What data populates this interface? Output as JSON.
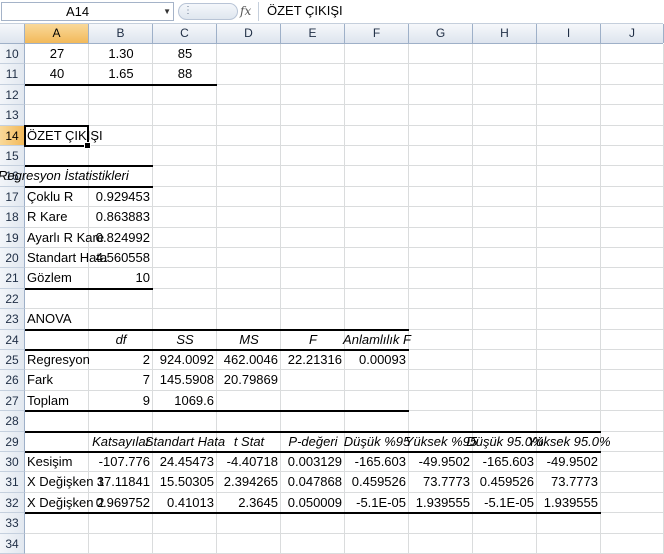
{
  "formula_bar": {
    "name_box": "A14",
    "fx_label": "fx",
    "formula": "ÖZET ÇIKIŞI"
  },
  "columns": [
    "A",
    "B",
    "C",
    "D",
    "E",
    "F",
    "G",
    "H",
    "I",
    "J"
  ],
  "selected_column": "A",
  "rows": [
    "10",
    "11",
    "12",
    "13",
    "14",
    "15",
    "16",
    "17",
    "18",
    "19",
    "20",
    "21",
    "22",
    "23",
    "24",
    "25",
    "26",
    "27",
    "28",
    "29",
    "30",
    "31",
    "32",
    "33",
    "34"
  ],
  "selected_row": "14",
  "cells": {
    "r10": {
      "A": "27",
      "B": "1.30",
      "C": "85"
    },
    "r11": {
      "A": "40",
      "B": "1.65",
      "C": "88"
    },
    "r14": {
      "A": "ÖZET ÇIKIŞI"
    },
    "r16": {
      "A": "Regresyon İstatistikleri"
    },
    "r17": {
      "A": "Çoklu R",
      "B": "0.929453"
    },
    "r18": {
      "A": "R Kare",
      "B": "0.863883"
    },
    "r19": {
      "A": "Ayarlı R Kare",
      "B": "0.824992"
    },
    "r20": {
      "A": "Standart Hata",
      "B": "4.560558"
    },
    "r21": {
      "A": "Gözlem",
      "B": "10"
    },
    "r23": {
      "A": "ANOVA"
    },
    "r24": {
      "B": "df",
      "C": "SS",
      "D": "MS",
      "E": "F",
      "F": "Anlamlılık F"
    },
    "r25": {
      "A": "Regresyon",
      "B": "2",
      "C": "924.0092",
      "D": "462.0046",
      "E": "22.21316",
      "F": "0.00093"
    },
    "r26": {
      "A": "Fark",
      "B": "7",
      "C": "145.5908",
      "D": "20.79869"
    },
    "r27": {
      "A": "Toplam",
      "B": "9",
      "C": "1069.6"
    },
    "r29": {
      "B": "Katsayılar",
      "C": "Standart Hata",
      "D": "t Stat",
      "E": "P-değeri",
      "F": "Düşük %95",
      "G": "Yüksek %95",
      "H": "Düşük 95.0%",
      "I": "Yüksek 95.0%"
    },
    "r30": {
      "A": "Kesişim",
      "B": "-107.776",
      "C": "24.45473",
      "D": "-4.40718",
      "E": "0.003129",
      "F": "-165.603",
      "G": "-49.9502",
      "H": "-165.603",
      "I": "-49.9502"
    },
    "r31": {
      "A": "X Değişken 1",
      "B": "37.11841",
      "C": "15.50305",
      "D": "2.394265",
      "E": "0.047868",
      "F": "0.459526",
      "G": "73.7773",
      "H": "0.459526",
      "I": "73.7773"
    },
    "r32": {
      "A": "X Değişken 2",
      "B": "0.969752",
      "C": "0.41013",
      "D": "2.3645",
      "E": "0.050009",
      "F": "-5.1E-05",
      "G": "1.939555",
      "H": "-5.1E-05",
      "I": "1.939555"
    }
  }
}
